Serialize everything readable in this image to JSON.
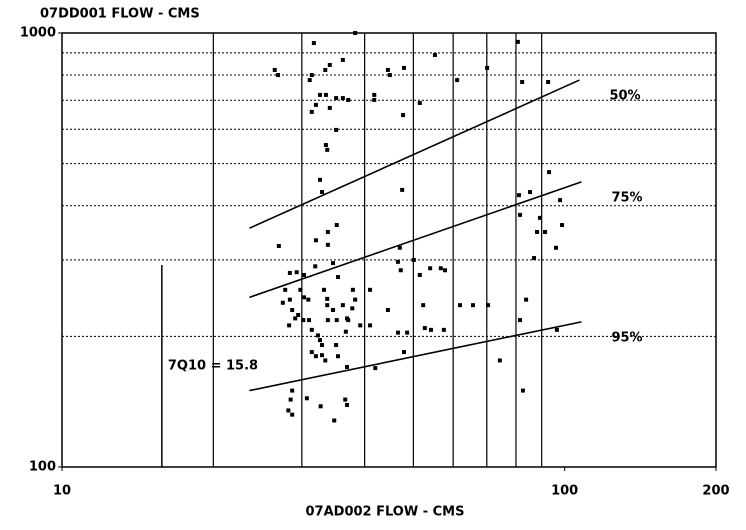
{
  "chart_data": {
    "type": "scatter",
    "title": "07DD001 FLOW - CMS",
    "x_label": "07AD002 FLOW - CMS",
    "log_x": true,
    "log_y": true,
    "xlim": [
      10,
      200
    ],
    "ylim": [
      100,
      1000
    ],
    "xticks": [
      10,
      100,
      200
    ],
    "yticks": [
      100,
      1000
    ],
    "x_minor_grid": [
      20,
      30,
      40,
      50,
      60,
      70,
      80,
      90
    ],
    "y_minor_grid": [
      200,
      300,
      400,
      500,
      600,
      700,
      800,
      900
    ],
    "color": "#000000",
    "x": [
      31.7,
      38.3,
      36.2,
      33.4,
      34.1,
      31.4,
      26.5,
      26.9,
      31.1,
      32.6,
      33.5,
      32.0,
      34.1,
      35.1,
      36.2,
      37.1,
      44.9,
      44.5,
      47.9,
      51.5,
      55.2,
      61.1,
      70.1,
      80.7,
      82.3,
      92.7,
      41.8,
      41.8,
      47.7,
      31.4,
      35.1,
      33.5,
      33.7,
      32.6,
      32.9,
      47.5,
      81.1,
      85.3,
      89.3,
      93.1,
      97.9,
      81.5,
      88.1,
      91.4,
      98.8,
      86.9,
      96.1,
      27.0,
      29.3,
      28.4,
      30.3,
      31.9,
      32.0,
      33.8,
      33.8,
      35.2,
      34.6,
      37.9,
      35.4,
      41.0,
      46.6,
      47.0,
      50.1,
      51.5,
      54.0,
      56.7,
      57.8,
      47.2,
      30.3,
      33.7,
      33.2,
      29.8,
      27.8,
      28.4,
      30.9,
      33.7,
      34.6,
      36.2,
      38.3,
      37.1,
      39.2,
      44.5,
      52.3,
      61.9,
      65.7,
      70.4,
      81.5,
      83.8,
      27.5,
      28.7,
      29.5,
      30.2,
      31.0,
      31.4,
      32.3,
      32.6,
      32.9,
      33.8,
      35.1,
      35.2,
      37.8,
      36.9,
      36.7,
      41.0,
      28.3,
      29.1,
      31.4,
      32.0,
      32.9,
      33.4,
      35.4,
      36.9,
      46.6,
      47.9,
      52.7,
      54.2,
      57.5,
      48.6,
      74.3,
      82.6,
      42.0,
      28.7,
      28.5,
      28.2,
      28.7,
      30.7,
      32.7,
      34.8,
      36.6,
      36.9,
      96.5
    ],
    "y": [
      948,
      1000,
      867,
      822,
      844,
      800,
      822,
      800,
      779,
      720,
      720,
      683,
      672,
      708,
      708,
      701,
      800,
      822,
      831,
      690,
      890,
      779,
      831,
      954,
      771,
      771,
      720,
      701,
      647,
      658,
      598,
      552,
      538,
      459,
      430,
      435,
      423,
      430,
      375,
      478,
      412,
      381,
      348,
      348,
      361,
      303,
      320,
      323,
      281,
      280,
      277,
      290,
      333,
      325,
      348,
      361,
      295,
      256,
      274,
      256,
      297,
      320,
      300,
      277,
      287,
      287,
      284,
      284,
      246,
      244,
      256,
      256,
      256,
      243,
      243,
      236,
      230,
      236,
      243,
      218,
      212,
      230,
      236,
      236,
      236,
      236,
      218,
      243,
      239,
      230,
      224,
      218,
      218,
      207,
      201,
      196,
      191,
      218,
      191,
      218,
      232,
      220,
      205,
      212,
      212,
      220,
      184,
      180,
      181,
      176,
      180,
      170,
      204,
      184,
      209,
      207,
      207,
      204,
      176,
      150,
      169,
      150,
      143,
      135,
      132,
      144,
      138,
      128,
      143,
      139,
      207
    ],
    "fit_lines": [
      {
        "name": "50%",
        "x": [
          23.6,
          107
        ],
        "y": [
          355,
          779
        ]
      },
      {
        "name": "75%",
        "x": [
          23.6,
          108
        ],
        "y": [
          246,
          454
        ]
      },
      {
        "name": "95%",
        "x": [
          23.6,
          108
        ],
        "y": [
          150,
          216
        ]
      }
    ],
    "threshold": {
      "label": "7Q10 = 15.8",
      "x": 15.8,
      "y_top": 292
    }
  }
}
